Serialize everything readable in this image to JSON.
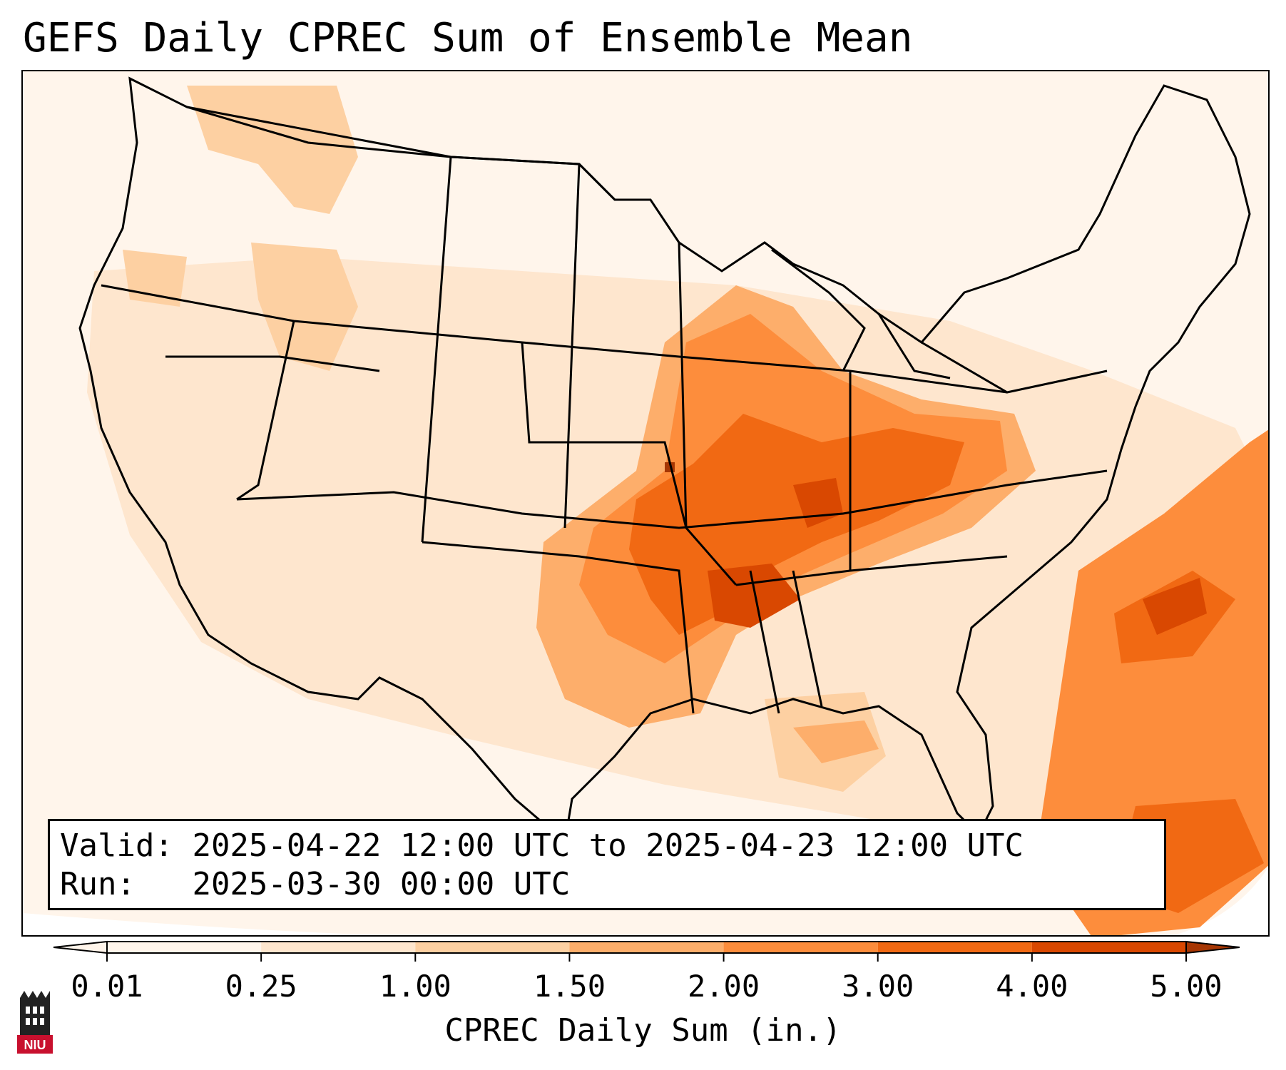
{
  "title": "GEFS Daily CPREC Sum of Ensemble Mean",
  "info": {
    "valid_label": "Valid:",
    "valid_value": "2025-04-22 12:00 UTC to 2025-04-23 12:00 UTC",
    "run_label": "Run:",
    "run_value": "2025-03-30 00:00 UTC"
  },
  "colorbar": {
    "label": "CPREC Daily Sum (in.)",
    "ticks": [
      "0.01",
      "0.25",
      "1.00",
      "1.50",
      "2.00",
      "3.00",
      "4.00",
      "5.00"
    ],
    "colors": [
      "#fff5eb",
      "#fee6ce",
      "#fdd0a2",
      "#fdae6b",
      "#fd8d3c",
      "#f16913",
      "#d94801",
      "#a63603"
    ],
    "extend": "both"
  },
  "map": {
    "region": "Contiguous United States",
    "precip_levels": [
      {
        "level": "0.01–0.25",
        "color": "#fff5eb"
      },
      {
        "level": "0.25–1.00",
        "color": "#fee6ce"
      },
      {
        "level": "1.00–1.50",
        "color": "#fdd0a2"
      },
      {
        "level": "1.50–2.00",
        "color": "#fdae6b"
      },
      {
        "level": "2.00–3.00",
        "color": "#fd8d3c"
      },
      {
        "level": "3.00–4.00",
        "color": "#f16913"
      },
      {
        "level": "4.00–5.00",
        "color": "#d94801"
      },
      {
        "level": "> 5.00",
        "color": "#a63603"
      }
    ]
  },
  "logo": {
    "text": "NIU"
  }
}
